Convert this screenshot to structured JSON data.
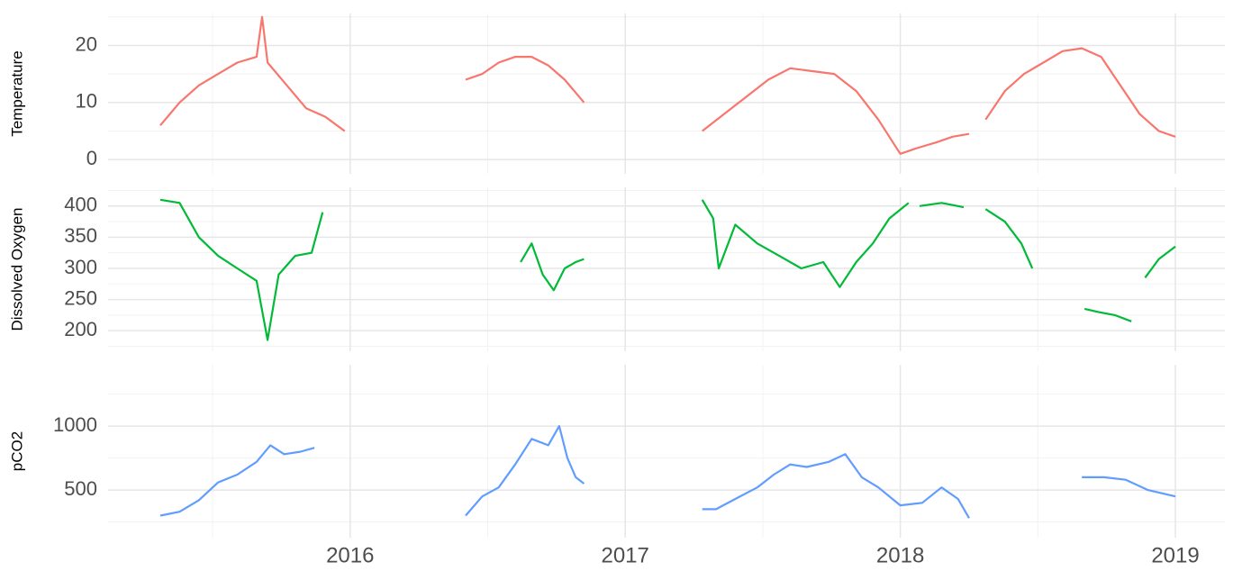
{
  "chart_data": [
    {
      "type": "line",
      "ylabel": "Temperature",
      "color": "#F8766D",
      "xlim": [
        2015.12,
        2019.18
      ],
      "xticks": [
        2016,
        2017,
        2018,
        2019
      ],
      "ylim": [
        -2.5,
        25.6
      ],
      "yticks": [
        0,
        10,
        20
      ],
      "grid": true,
      "x": [
        2015.31,
        2015.38,
        2015.45,
        2015.52,
        2015.59,
        2015.66,
        2015.68,
        2015.7,
        2015.77,
        2015.84,
        2015.91,
        2015.98,
        2016.2,
        2016.42,
        2016.48,
        2016.54,
        2016.6,
        2016.66,
        2016.72,
        2016.78,
        2016.85,
        2017.05,
        2017.28,
        2017.36,
        2017.44,
        2017.52,
        2017.6,
        2017.68,
        2017.76,
        2017.84,
        2017.92,
        2018.0,
        2018.06,
        2018.13,
        2018.19,
        2018.25,
        2018.28,
        2018.31,
        2018.38,
        2018.45,
        2018.52,
        2018.59,
        2018.66,
        2018.73,
        2018.8,
        2018.87,
        2018.94,
        2019.0
      ],
      "values": [
        6,
        10,
        13,
        15,
        17,
        18,
        25,
        17,
        13,
        9,
        7.5,
        5,
        null,
        14,
        15,
        17,
        18,
        18,
        16.5,
        14,
        10,
        null,
        5,
        8,
        11,
        14,
        16,
        15.5,
        15,
        12,
        7,
        1,
        2,
        3,
        4,
        4.5,
        null,
        7,
        12,
        15,
        17,
        19,
        19.5,
        18,
        13,
        8,
        5,
        4
      ]
    },
    {
      "type": "line",
      "ylabel": "Dissolved Oxygen",
      "color": "#00BA38",
      "xlim": [
        2015.12,
        2019.18
      ],
      "xticks": [
        2016,
        2017,
        2018,
        2019
      ],
      "ylim": [
        167,
        430
      ],
      "yticks": [
        200,
        250,
        300,
        350,
        400
      ],
      "grid": true,
      "x": [
        2015.31,
        2015.38,
        2015.45,
        2015.52,
        2015.59,
        2015.66,
        2015.7,
        2015.74,
        2015.8,
        2015.86,
        2015.9,
        2016.2,
        2016.62,
        2016.66,
        2016.7,
        2016.74,
        2016.78,
        2016.82,
        2016.85,
        2017.05,
        2017.28,
        2017.32,
        2017.34,
        2017.4,
        2017.48,
        2017.56,
        2017.64,
        2017.72,
        2017.78,
        2017.84,
        2017.9,
        2017.96,
        2018.03,
        2018.05,
        2018.07,
        2018.15,
        2018.23,
        2018.27,
        2018.31,
        2018.38,
        2018.44,
        2018.48,
        2018.57,
        2018.67,
        2018.72,
        2018.78,
        2018.84,
        2018.86,
        2018.89,
        2018.94,
        2019.0
      ],
      "values": [
        410,
        405,
        350,
        320,
        300,
        280,
        185,
        290,
        320,
        325,
        390,
        null,
        310,
        340,
        290,
        265,
        300,
        310,
        315,
        null,
        410,
        380,
        300,
        370,
        340,
        320,
        300,
        310,
        270,
        310,
        340,
        380,
        405,
        null,
        400,
        405,
        398,
        null,
        395,
        375,
        340,
        300,
        null,
        235,
        230,
        225,
        215,
        null,
        285,
        315,
        335
      ]
    },
    {
      "type": "line",
      "ylabel": "pCO2",
      "color": "#619CFF",
      "xlim": [
        2015.12,
        2019.18
      ],
      "xticks": [
        2016,
        2017,
        2018,
        2019
      ],
      "ylim": [
        127,
        1480
      ],
      "yticks": [
        500,
        1000
      ],
      "grid": true,
      "x": [
        2015.31,
        2015.38,
        2015.45,
        2015.52,
        2015.59,
        2015.66,
        2015.71,
        2015.76,
        2015.82,
        2015.87,
        2016.1,
        2016.42,
        2016.48,
        2016.54,
        2016.6,
        2016.66,
        2016.72,
        2016.76,
        2016.79,
        2016.82,
        2016.85,
        2017.05,
        2017.28,
        2017.33,
        2017.4,
        2017.48,
        2017.54,
        2017.6,
        2017.66,
        2017.74,
        2017.8,
        2017.86,
        2017.92,
        2018.0,
        2018.08,
        2018.15,
        2018.21,
        2018.25,
        2018.45,
        2018.66,
        2018.74,
        2018.82,
        2018.9,
        2019.0
      ],
      "values": [
        300,
        330,
        420,
        560,
        620,
        720,
        850,
        780,
        800,
        830,
        null,
        300,
        450,
        520,
        700,
        900,
        850,
        1000,
        750,
        600,
        550,
        null,
        350,
        350,
        430,
        520,
        620,
        700,
        680,
        720,
        780,
        600,
        520,
        380,
        400,
        520,
        430,
        280,
        null,
        600,
        600,
        580,
        500,
        450
      ]
    }
  ]
}
